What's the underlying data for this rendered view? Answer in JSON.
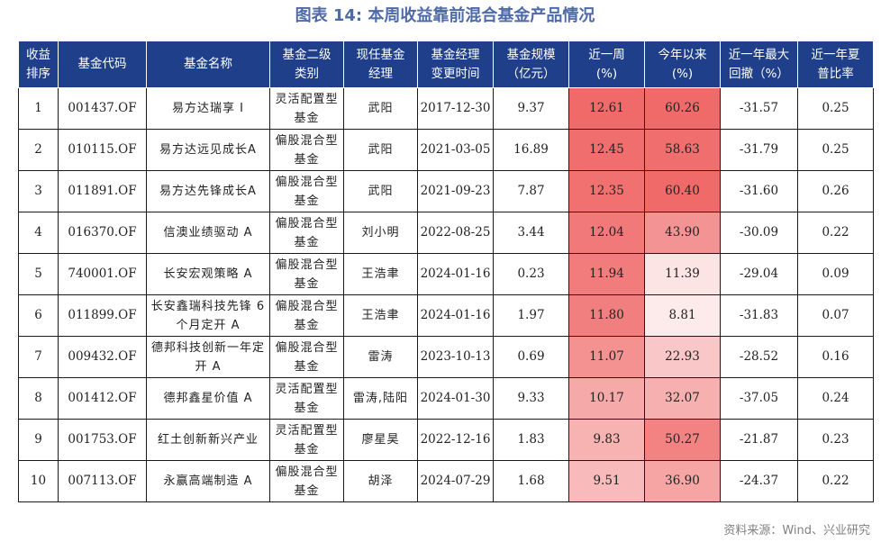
{
  "title": "图表 14: 本周收益靠前混合基金产品情况",
  "headers": [
    "收益排序",
    "基金代码",
    "基金名称",
    "基金二级类别",
    "现任基金经理",
    "基金经理变更时间",
    "基金规模（亿元）",
    "近一周（%）",
    "今年以来（%）",
    "近一年最大回撤（%）",
    "近一年夏普比率"
  ],
  "header_lines": [
    [
      "收益",
      "排序"
    ],
    [
      "基金代码"
    ],
    [
      "基金名称"
    ],
    [
      "基金二级",
      "类别"
    ],
    [
      "现任基金",
      "经理"
    ],
    [
      "基金经理",
      "变更时间"
    ],
    [
      "基金规模",
      "（亿元）"
    ],
    [
      "近一周",
      "(%)"
    ],
    [
      "今年以来",
      "(%)"
    ],
    [
      "近一年最大",
      "回撤（%）"
    ],
    [
      "近一年夏",
      "普比率"
    ]
  ],
  "rows": [
    {
      "rank": "1",
      "code": "001437.OF",
      "name": "易方达瑞享 I",
      "category": "灵活配置型基金",
      "manager": "武阳",
      "change_date": "2017-12-30",
      "size": "9.37",
      "week": "12.61",
      "ytd": "60.26",
      "max_dd": "-31.57",
      "sharpe": "0.25"
    },
    {
      "rank": "2",
      "code": "010115.OF",
      "name": "易方达远见成长A",
      "category": "偏股混合型基金",
      "manager": "武阳",
      "change_date": "2021-03-05",
      "size": "16.89",
      "week": "12.45",
      "ytd": "58.63",
      "max_dd": "-31.79",
      "sharpe": "0.25"
    },
    {
      "rank": "3",
      "code": "011891.OF",
      "name": "易方达先锋成长A",
      "category": "偏股混合型基金",
      "manager": "武阳",
      "change_date": "2021-09-23",
      "size": "7.87",
      "week": "12.35",
      "ytd": "60.40",
      "max_dd": "-31.60",
      "sharpe": "0.26"
    },
    {
      "rank": "4",
      "code": "016370.OF",
      "name": "信澳业绩驱动 A",
      "category": "偏股混合型基金",
      "manager": "刘小明",
      "change_date": "2022-08-25",
      "size": "3.44",
      "week": "12.04",
      "ytd": "43.90",
      "max_dd": "-30.09",
      "sharpe": "0.22"
    },
    {
      "rank": "5",
      "code": "740001.OF",
      "name": "长安宏观策略 A",
      "category": "偏股混合型基金",
      "manager": "王浩聿",
      "change_date": "2024-01-16",
      "size": "0.23",
      "week": "11.94",
      "ytd": "11.39",
      "max_dd": "-29.04",
      "sharpe": "0.09"
    },
    {
      "rank": "6",
      "code": "011899.OF",
      "name": "长安鑫瑞科技先锋 6 个月定开 A",
      "category": "偏股混合型基金",
      "manager": "王浩聿",
      "change_date": "2024-01-16",
      "size": "1.97",
      "week": "11.80",
      "ytd": "8.81",
      "max_dd": "-31.83",
      "sharpe": "0.07"
    },
    {
      "rank": "7",
      "code": "009432.OF",
      "name": "德邦科技创新一年定开 A",
      "category": "偏股混合型基金",
      "manager": "雷涛",
      "change_date": "2023-10-13",
      "size": "0.69",
      "week": "11.07",
      "ytd": "22.93",
      "max_dd": "-28.52",
      "sharpe": "0.16"
    },
    {
      "rank": "8",
      "code": "001412.OF",
      "name": "德邦鑫星价值 A",
      "category": "灵活配置型基金",
      "manager": "雷涛,陆阳",
      "change_date": "2024-01-30",
      "size": "9.33",
      "week": "10.17",
      "ytd": "32.07",
      "max_dd": "-37.05",
      "sharpe": "0.24"
    },
    {
      "rank": "9",
      "code": "001753.OF",
      "name": "红土创新新兴产业",
      "category": "灵活配置型基金",
      "manager": "廖星昊",
      "change_date": "2022-12-16",
      "size": "1.83",
      "week": "9.83",
      "ytd": "50.27",
      "max_dd": "-21.87",
      "sharpe": "0.23"
    },
    {
      "rank": "10",
      "code": "007113.OF",
      "name": "永赢高端制造 A",
      "category": "偏股混合型基金",
      "manager": "胡泽",
      "change_date": "2024-07-29",
      "size": "1.68",
      "week": "9.51",
      "ytd": "36.90",
      "max_dd": "-24.37",
      "sharpe": "0.22"
    }
  ],
  "heat_colors": {
    "high": "#f06a6a",
    "low": "#fdeaea",
    "header_bg": "#1f3f8a",
    "title": "#4e6aa8"
  },
  "source": "资料来源：Wind、兴业研究"
}
